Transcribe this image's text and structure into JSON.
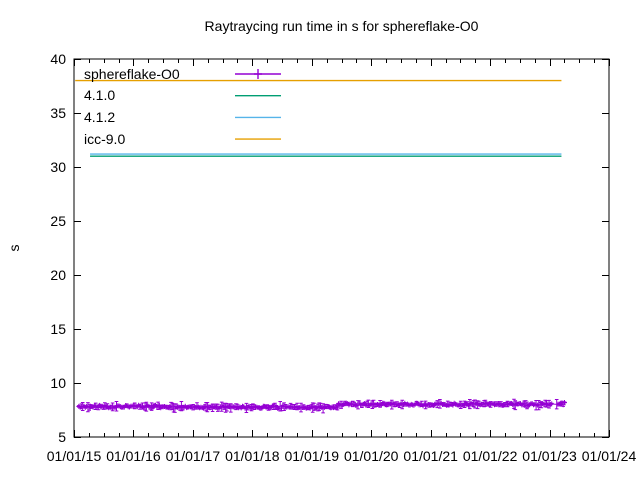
{
  "colors": {
    "background": "#ffffff",
    "axis": "#000000",
    "text": "#000000"
  },
  "chart_data": {
    "type": "scatter",
    "title": "Raytraycing run time in s for sphereflake-O0",
    "xlabel": "",
    "ylabel": "s",
    "ylim": [
      5,
      40
    ],
    "y_tick_step": 5,
    "y_tick_labels": [
      "5",
      "10",
      "15",
      "20",
      "25",
      "30",
      "35",
      "40"
    ],
    "x_tick_labels": [
      "01/01/15",
      "01/01/16",
      "01/01/17",
      "01/01/18",
      "01/01/19",
      "01/01/20",
      "01/01/21",
      "01/01/22",
      "01/01/23",
      "01/01/24"
    ],
    "xlim_years": [
      2015,
      2024
    ],
    "x_minor_ticks_per_interval": 3,
    "grid": false,
    "legend_position": "top-left-inside",
    "series": [
      {
        "name": "sphereflake-O0",
        "color": "#9400d3",
        "style": "points_errorbars",
        "marker": "plus",
        "approx_runtime_s": 7.9,
        "band_segments": [
          {
            "t_start": 2015.08,
            "t_end": 2016.5,
            "mean": 7.82
          },
          {
            "t_start": 2016.5,
            "t_end": 2019.45,
            "mean": 7.76
          },
          {
            "t_start": 2019.45,
            "t_end": 2023.05,
            "mean": 8.02
          },
          {
            "t_start": 2023.12,
            "t_end": 2023.27,
            "mean": 8.08
          }
        ],
        "scatter_amplitude": 0.1,
        "errorbar_halfheight_range": [
          0.05,
          0.45
        ]
      },
      {
        "name": "4.1.0",
        "color": "#009e73",
        "style": "hline",
        "value": 31.0,
        "t_start": 2015.27,
        "t_end": 2023.2
      },
      {
        "name": "4.1.2",
        "color": "#56b4e9",
        "style": "hline",
        "value": 31.2,
        "t_start": 2015.27,
        "t_end": 2023.2
      },
      {
        "name": "icc-9.0",
        "color": "#e69f00",
        "style": "hline",
        "value": 38.0,
        "t_start": 2015.02,
        "t_end": 2023.2
      }
    ]
  }
}
